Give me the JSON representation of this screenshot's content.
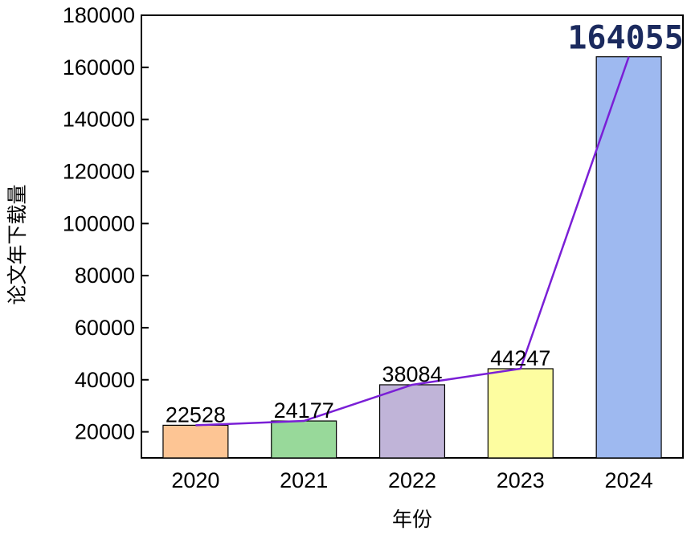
{
  "chart_data": {
    "type": "bar",
    "categories": [
      "2020",
      "2021",
      "2022",
      "2023",
      "2024"
    ],
    "values": [
      22528,
      24177,
      38084,
      44247,
      164055
    ],
    "data_labels": [
      "22528",
      "24177",
      "38084",
      "44247",
      "164055"
    ],
    "title": "",
    "xlabel": "年份",
    "ylabel": "论文年下载量",
    "ylim": [
      10000,
      180000
    ],
    "yticks": [
      20000,
      40000,
      60000,
      80000,
      100000,
      120000,
      140000,
      160000,
      180000
    ],
    "ytick_labels": [
      "20000",
      "40000",
      "60000",
      "80000",
      "100000",
      "120000",
      "140000",
      "160000",
      "180000"
    ],
    "bar_colors": [
      "#fdc594",
      "#98d99a",
      "#c0b4d8",
      "#fdfda0",
      "#9eb9f0"
    ],
    "line_color": "#7a1fd6",
    "highlight_label_color": "#1b2a5e",
    "line_overlay": true,
    "grid": false,
    "legend": "none"
  }
}
